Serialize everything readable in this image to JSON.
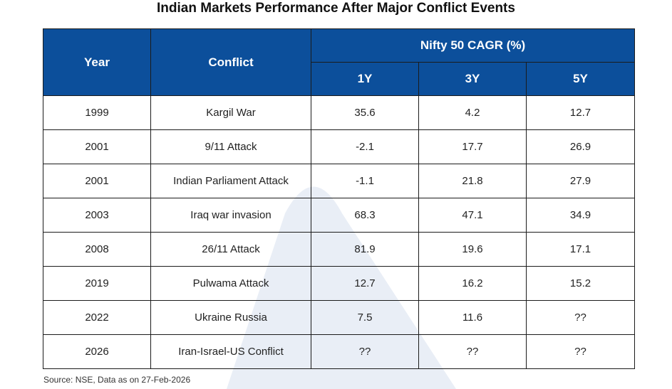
{
  "title": "Indian Markets Performance After Major Conflict Events",
  "source": "Source: NSE, Data as on 27-Feb-2026",
  "colors": {
    "header_bg": "#0c4f9b",
    "header_text": "#ffffff",
    "border": "#1b1b1b",
    "watermark": "#e9eef6"
  },
  "chart_data": {
    "type": "table",
    "title": "Indian Markets Performance After Major Conflict Events",
    "header": {
      "year": "Year",
      "conflict": "Conflict",
      "group": "Nifty 50 CAGR (%)",
      "periods": [
        "1Y",
        "3Y",
        "5Y"
      ]
    },
    "rows": [
      {
        "year": "1999",
        "conflict": "Kargil War",
        "y1": "35.6",
        "y3": "4.2",
        "y5": "12.7"
      },
      {
        "year": "2001",
        "conflict": "9/11 Attack",
        "y1": "-2.1",
        "y3": "17.7",
        "y5": "26.9"
      },
      {
        "year": "2001",
        "conflict": "Indian Parliament Attack",
        "y1": "-1.1",
        "y3": "21.8",
        "y5": "27.9"
      },
      {
        "year": "2003",
        "conflict": "Iraq war invasion",
        "y1": "68.3",
        "y3": "47.1",
        "y5": "34.9"
      },
      {
        "year": "2008",
        "conflict": "26/11 Attack",
        "y1": "81.9",
        "y3": "19.6",
        "y5": "17.1"
      },
      {
        "year": "2019",
        "conflict": "Pulwama Attack",
        "y1": "12.7",
        "y3": "16.2",
        "y5": "15.2"
      },
      {
        "year": "2022",
        "conflict": "Ukraine Russia",
        "y1": "7.5",
        "y3": "11.6",
        "y5": "??"
      },
      {
        "year": "2026",
        "conflict": "Iran-Israel-US Conflict",
        "y1": "??",
        "y3": "??",
        "y5": "??"
      }
    ]
  }
}
